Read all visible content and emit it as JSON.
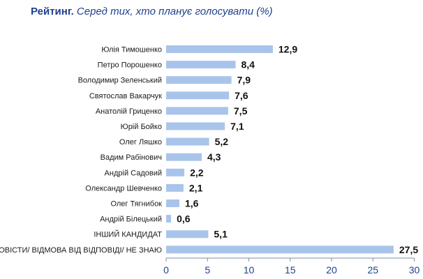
{
  "header": {
    "title_bold": "Рейтинг.",
    "title_italic": "Серед тих, хто планує голосувати (%)"
  },
  "colors": {
    "bar": "#a9c4ea",
    "axis": "#7f8fa6",
    "title": "#1f3f8f"
  },
  "chart_data": {
    "type": "bar",
    "orientation": "horizontal",
    "categories": [
      "Юлія Тимошенко",
      "Петро Порошенко",
      "Володимир Зеленський",
      "Святослав Вакарчук",
      "Анатолій Гриценко",
      "Юрій Бойко",
      "Олег Ляшко",
      "Вадим Рабінович",
      "Андрій Садовий",
      "Олександр Шевченко",
      "Олег Тягнибок",
      "Андрій Білецький",
      "ІНШИЙ КАНДИДАТ",
      "ВАЖКО ВІДПОВІСТИ/ ВІДМОВА ВІД ВІДПОВІДІ/ НЕ ЗНАЮ"
    ],
    "values": [
      12.9,
      8.4,
      7.9,
      7.6,
      7.5,
      7.1,
      5.2,
      4.3,
      2.2,
      2.1,
      1.6,
      0.6,
      5.1,
      27.5
    ],
    "value_labels": [
      "12,9",
      "8,4",
      "7,9",
      "7,6",
      "7,5",
      "7,1",
      "5,2",
      "4,3",
      "2,2",
      "2,1",
      "1,6",
      "0,6",
      "5,1",
      "27,5"
    ],
    "xlim": [
      0,
      30
    ],
    "xticks": [
      0,
      5,
      10,
      15,
      20,
      25,
      30
    ],
    "xtick_labels": [
      "0",
      "5",
      "10",
      "15",
      "20",
      "25",
      "30"
    ],
    "title": "Рейтинг. Серед тих, хто планує голосувати (%)",
    "grid": false,
    "legend": "none"
  }
}
